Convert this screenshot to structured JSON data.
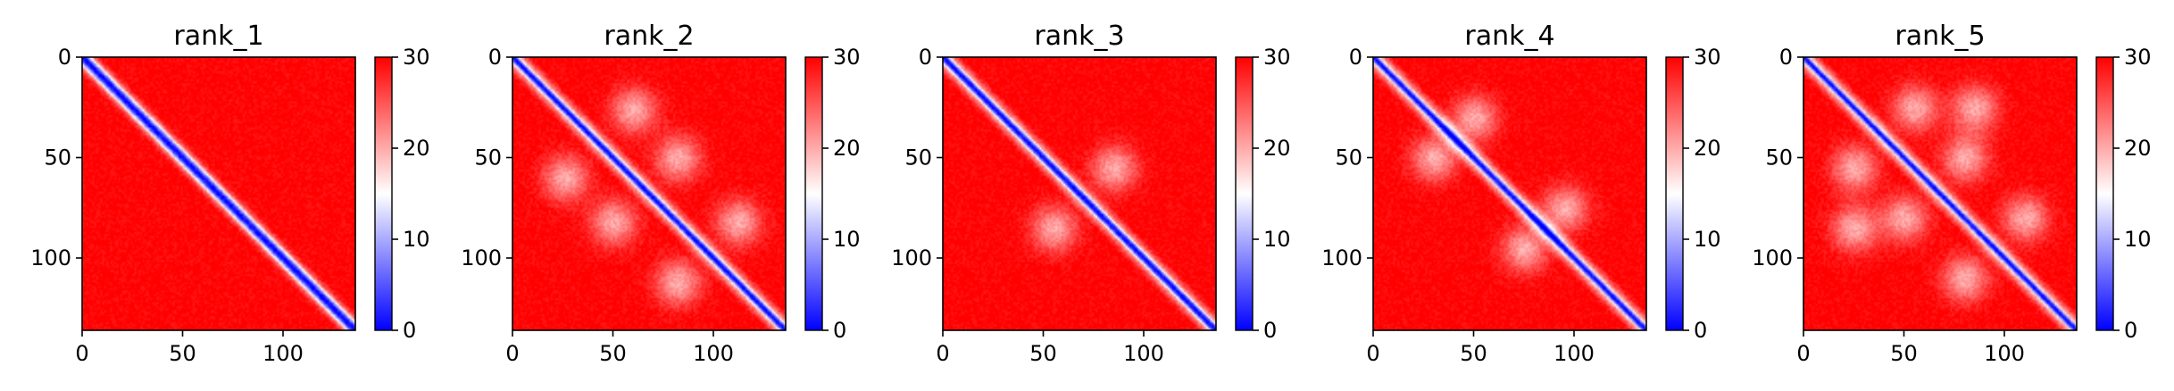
{
  "chart_data": [
    {
      "type": "heatmap",
      "title": "rank_1",
      "x_ticks": [
        "0",
        "50",
        "100"
      ],
      "y_ticks": [
        "0",
        "50",
        "100"
      ],
      "xlim": [
        0,
        136
      ],
      "ylim": [
        136,
        0
      ],
      "colorbar": {
        "ticks": [
          "0",
          "10",
          "20",
          "30"
        ],
        "range": [
          0,
          30
        ],
        "colormap": "bwr"
      },
      "pattern": {
        "diag_sigma": 3.2,
        "blobs": []
      }
    },
    {
      "type": "heatmap",
      "title": "rank_2",
      "x_ticks": [
        "0",
        "50",
        "100"
      ],
      "y_ticks": [
        "0",
        "50",
        "100"
      ],
      "xlim": [
        0,
        136
      ],
      "ylim": [
        136,
        0
      ],
      "colorbar": {
        "ticks": [
          "0",
          "10",
          "20",
          "30"
        ],
        "range": [
          0,
          30
        ],
        "colormap": "bwr"
      },
      "pattern": {
        "diag_sigma": 2.4,
        "blobs": [
          [
            50,
            82
          ],
          [
            82,
            50
          ],
          [
            82,
            112
          ],
          [
            112,
            82
          ],
          [
            60,
            26
          ],
          [
            26,
            60
          ]
        ]
      }
    },
    {
      "type": "heatmap",
      "title": "rank_3",
      "x_ticks": [
        "0",
        "50",
        "100"
      ],
      "y_ticks": [
        "0",
        "50",
        "100"
      ],
      "xlim": [
        0,
        136
      ],
      "ylim": [
        136,
        0
      ],
      "colorbar": {
        "ticks": [
          "0",
          "10",
          "20",
          "30"
        ],
        "range": [
          0,
          30
        ],
        "colormap": "bwr"
      },
      "pattern": {
        "diag_sigma": 2.6,
        "blobs": [
          [
            55,
            85
          ],
          [
            85,
            55
          ]
        ]
      }
    },
    {
      "type": "heatmap",
      "title": "rank_4",
      "x_ticks": [
        "0",
        "50",
        "100"
      ],
      "y_ticks": [
        "0",
        "50",
        "100"
      ],
      "xlim": [
        0,
        136
      ],
      "ylim": [
        136,
        0
      ],
      "colorbar": {
        "ticks": [
          "0",
          "10",
          "20",
          "30"
        ],
        "range": [
          0,
          30
        ],
        "colormap": "bwr"
      },
      "pattern": {
        "diag_sigma": 2.3,
        "blobs": [
          [
            30,
            50
          ],
          [
            50,
            30
          ],
          [
            75,
            95
          ],
          [
            95,
            75
          ]
        ]
      }
    },
    {
      "type": "heatmap",
      "title": "rank_5",
      "x_ticks": [
        "0",
        "50",
        "100"
      ],
      "y_ticks": [
        "0",
        "50",
        "100"
      ],
      "xlim": [
        0,
        136
      ],
      "ylim": [
        136,
        0
      ],
      "colorbar": {
        "ticks": [
          "0",
          "10",
          "20",
          "30"
        ],
        "range": [
          0,
          30
        ],
        "colormap": "bwr"
      },
      "pattern": {
        "diag_sigma": 2.2,
        "blobs": [
          [
            50,
            80
          ],
          [
            80,
            50
          ],
          [
            80,
            110
          ],
          [
            110,
            80
          ],
          [
            55,
            25
          ],
          [
            25,
            55
          ],
          [
            85,
            25
          ],
          [
            25,
            85
          ]
        ]
      }
    }
  ]
}
